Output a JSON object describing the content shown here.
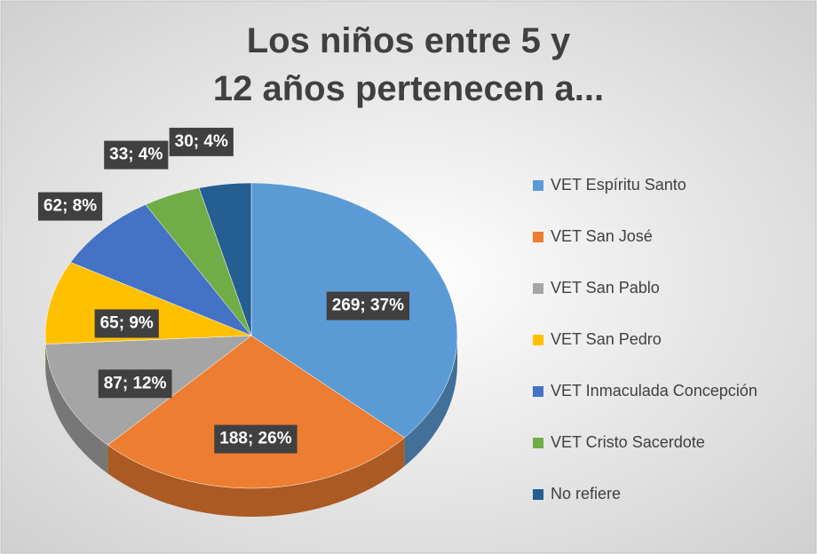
{
  "chart_data": {
    "type": "pie",
    "title": "Los niños entre 5 y 12 años pertenecen a...",
    "categories": [
      "VET Espíritu Santo",
      "VET San José",
      "VET San Pablo",
      "VET San Pedro",
      "VET Inmaculada Concepción",
      "VET Cristo Sacerdote",
      "No refiere"
    ],
    "values": [
      269,
      188,
      87,
      65,
      62,
      33,
      30
    ],
    "value_labels": [
      "269; 37%",
      "188; 26%",
      "87; 12%",
      "65; 9%",
      "62; 8%",
      "33; 4%",
      "30; 4%"
    ],
    "colors": [
      "#5b9bd5",
      "#ed7d31",
      "#a5a5a5",
      "#ffc000",
      "#4472c4",
      "#70ad47",
      "#255e91"
    ],
    "legend": "right"
  }
}
